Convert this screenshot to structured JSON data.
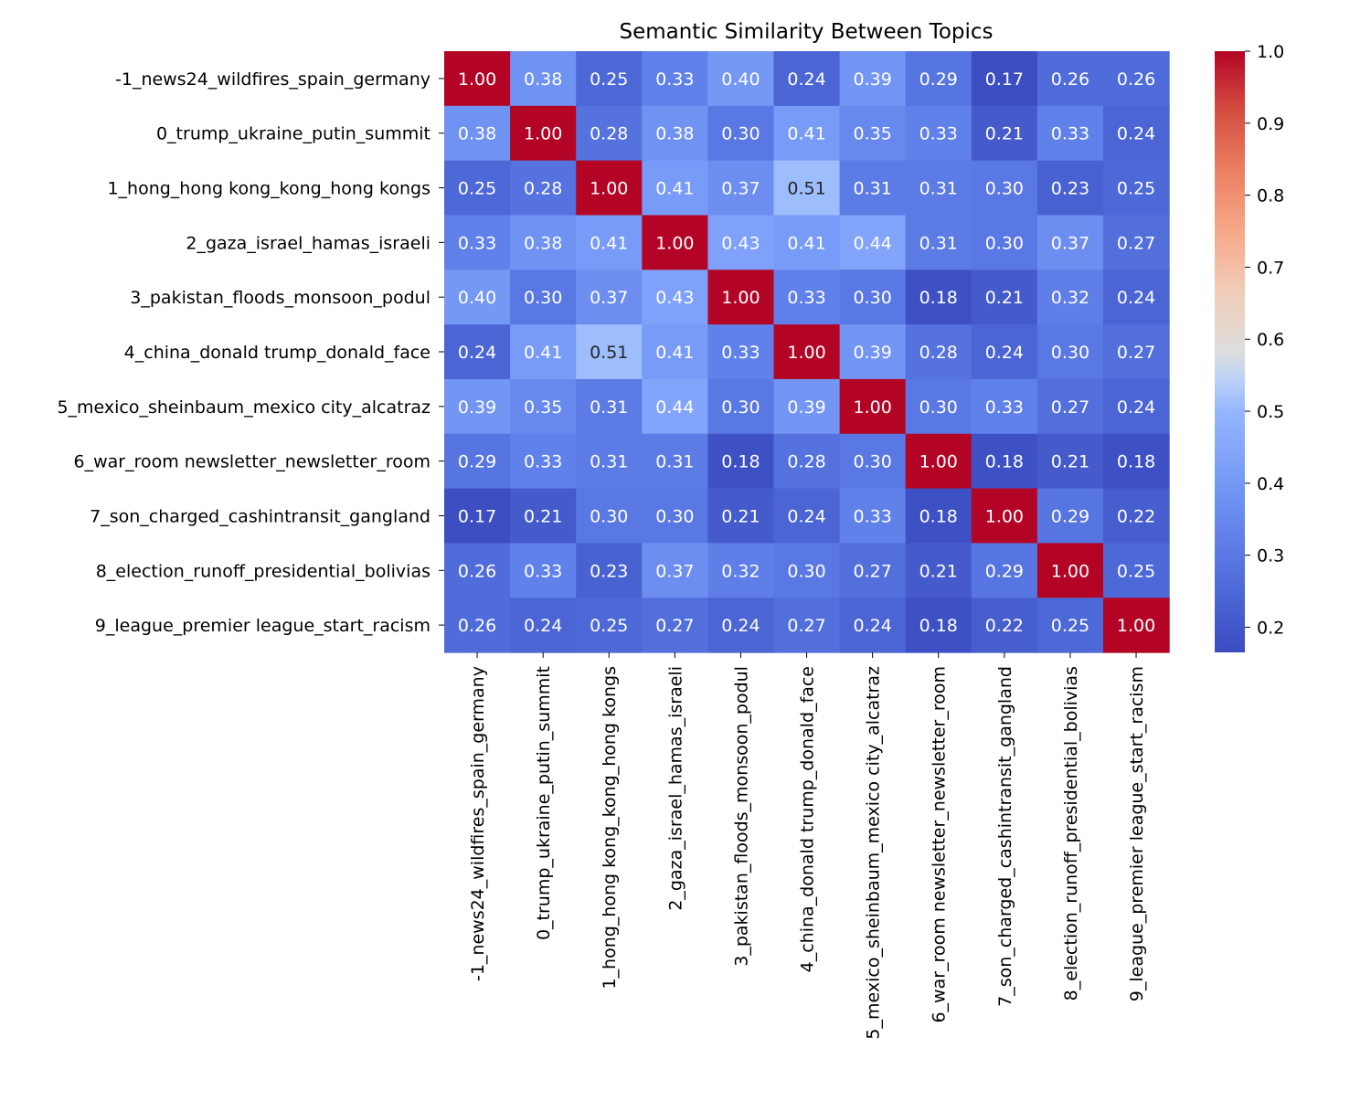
{
  "chart_data": {
    "type": "heatmap",
    "title": "Semantic Similarity Between Topics",
    "xlabel": "",
    "ylabel": "",
    "colormap": "coolwarm",
    "value_range": [
      0.165,
      1.0
    ],
    "categories": [
      "-1_news24_wildfires_spain_germany",
      "0_trump_ukraine_putin_summit",
      "1_hong_hong kong_kong_hong kongs",
      "2_gaza_israel_hamas_israeli",
      "3_pakistan_floods_monsoon_podul",
      "4_china_donald trump_donald_face",
      "5_mexico_sheinbaum_mexico city_alcatraz",
      "6_war_room newsletter_newsletter_room",
      "7_son_charged_cashintransit_gangland",
      "8_election_runoff_presidential_bolivias",
      "9_league_premier league_start_racism"
    ],
    "values": [
      [
        1.0,
        0.38,
        0.25,
        0.33,
        0.4,
        0.24,
        0.39,
        0.29,
        0.17,
        0.26,
        0.26
      ],
      [
        0.38,
        1.0,
        0.28,
        0.38,
        0.3,
        0.41,
        0.35,
        0.33,
        0.21,
        0.33,
        0.24
      ],
      [
        0.25,
        0.28,
        1.0,
        0.41,
        0.37,
        0.51,
        0.31,
        0.31,
        0.3,
        0.23,
        0.25
      ],
      [
        0.33,
        0.38,
        0.41,
        1.0,
        0.43,
        0.41,
        0.44,
        0.31,
        0.3,
        0.37,
        0.27
      ],
      [
        0.4,
        0.3,
        0.37,
        0.43,
        1.0,
        0.33,
        0.3,
        0.18,
        0.21,
        0.32,
        0.24
      ],
      [
        0.24,
        0.41,
        0.51,
        0.41,
        0.33,
        1.0,
        0.39,
        0.28,
        0.24,
        0.3,
        0.27
      ],
      [
        0.39,
        0.35,
        0.31,
        0.44,
        0.3,
        0.39,
        1.0,
        0.3,
        0.33,
        0.27,
        0.24
      ],
      [
        0.29,
        0.33,
        0.31,
        0.31,
        0.18,
        0.28,
        0.3,
        1.0,
        0.18,
        0.21,
        0.18
      ],
      [
        0.17,
        0.21,
        0.3,
        0.3,
        0.21,
        0.24,
        0.33,
        0.18,
        1.0,
        0.29,
        0.22
      ],
      [
        0.26,
        0.33,
        0.23,
        0.37,
        0.32,
        0.3,
        0.27,
        0.21,
        0.29,
        1.0,
        0.25
      ],
      [
        0.26,
        0.24,
        0.25,
        0.27,
        0.24,
        0.27,
        0.24,
        0.18,
        0.22,
        0.25,
        1.0
      ]
    ],
    "colorbar_ticks": [
      "0.2",
      "0.3",
      "0.4",
      "0.5",
      "0.6",
      "0.7",
      "0.8",
      "0.9",
      "1.0"
    ],
    "grid": false,
    "legend": "colorbar-right"
  }
}
